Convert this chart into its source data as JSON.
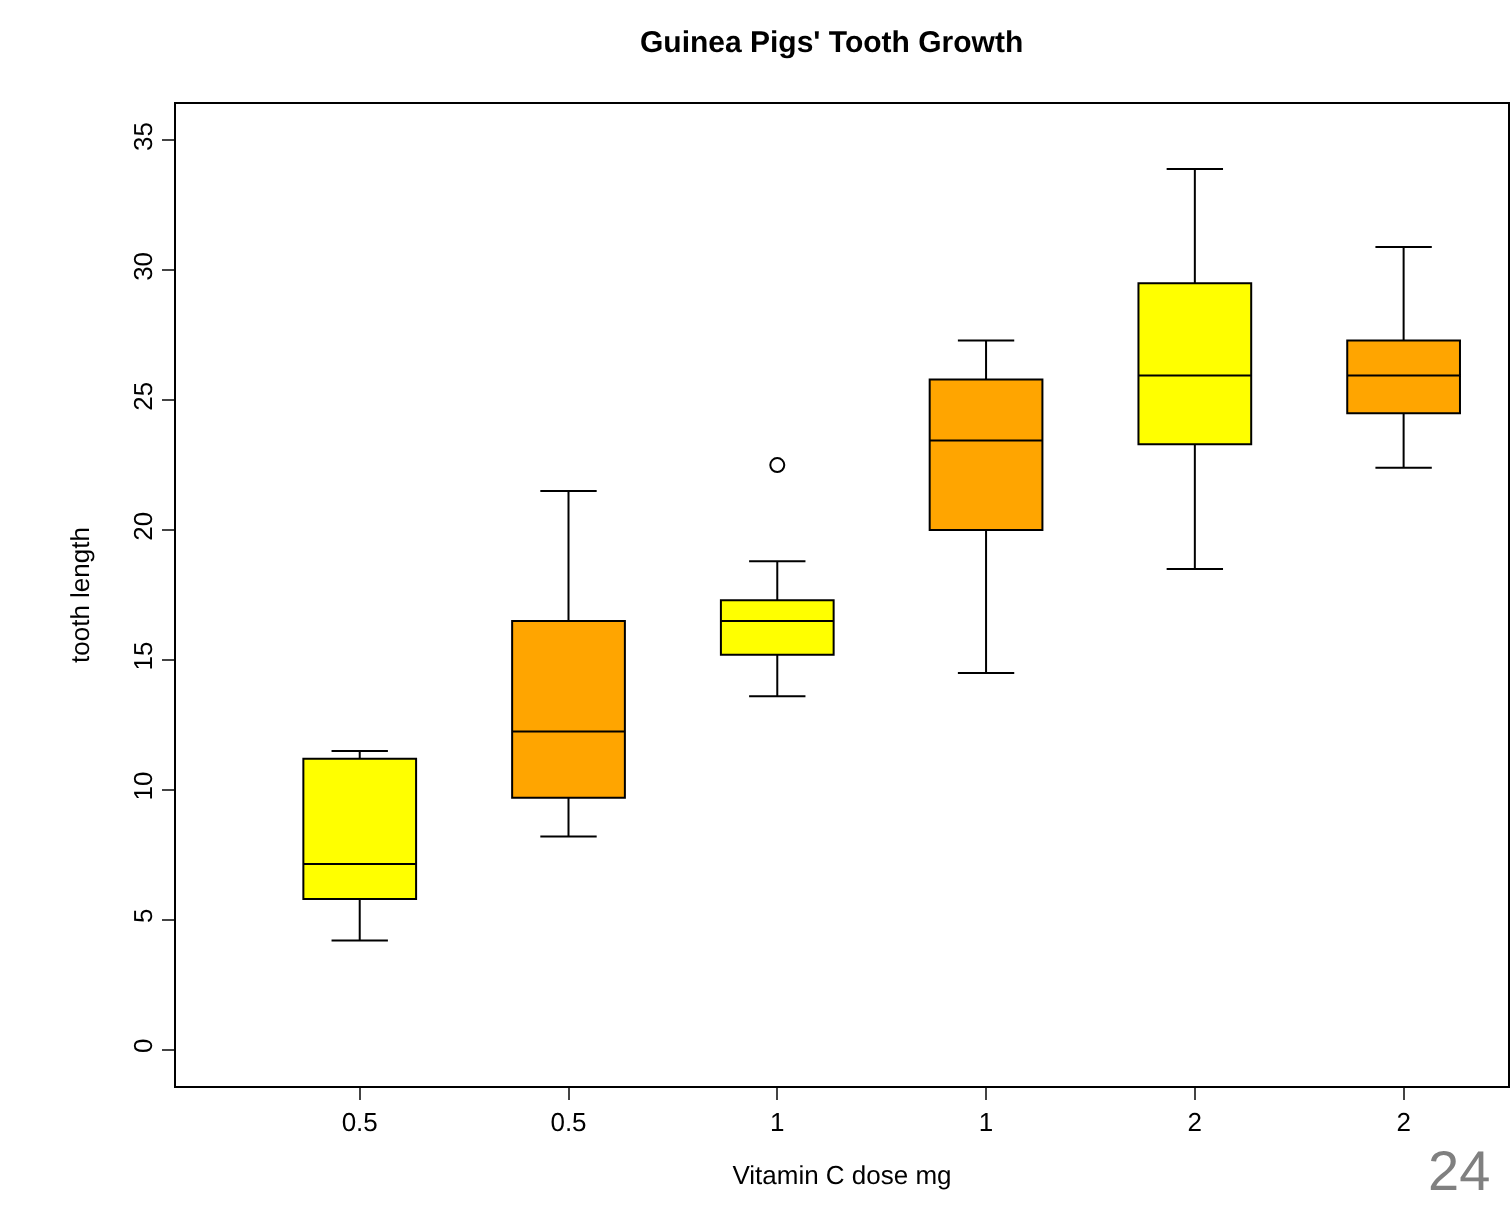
{
  "chart_data": {
    "type": "box",
    "title": "Guinea Pigs' Tooth Growth",
    "xlabel": "Vitamin C dose mg",
    "ylabel": "tooth length",
    "categories": [
      "0.5",
      "0.5",
      "1",
      "1",
      "2",
      "2"
    ],
    "colors": [
      "#ffff00",
      "#ffa500",
      "#ffff00",
      "#ffa500",
      "#ffff00",
      "#ffa500"
    ],
    "boxes": [
      {
        "low": 4.2,
        "q1": 5.8,
        "median": 7.15,
        "q3": 11.2,
        "high": 11.5
      },
      {
        "low": 8.2,
        "q1": 9.7,
        "median": 12.25,
        "q3": 16.5,
        "high": 21.5
      },
      {
        "low": 13.6,
        "q1": 15.2,
        "median": 16.5,
        "q3": 17.3,
        "high": 18.8,
        "outliers": [
          22.5
        ]
      },
      {
        "low": 14.5,
        "q1": 20.0,
        "median": 23.45,
        "q3": 25.8,
        "high": 27.3
      },
      {
        "low": 18.5,
        "q1": 23.3,
        "median": 25.95,
        "q3": 29.5,
        "high": 33.9
      },
      {
        "low": 22.4,
        "q1": 24.5,
        "median": 25.95,
        "q3": 27.3,
        "high": 30.9
      }
    ],
    "ylim": [
      -1.4,
      36.4
    ],
    "yticks": [
      0,
      5,
      10,
      15,
      20,
      25,
      30,
      35
    ],
    "annotations": [
      "24"
    ]
  }
}
